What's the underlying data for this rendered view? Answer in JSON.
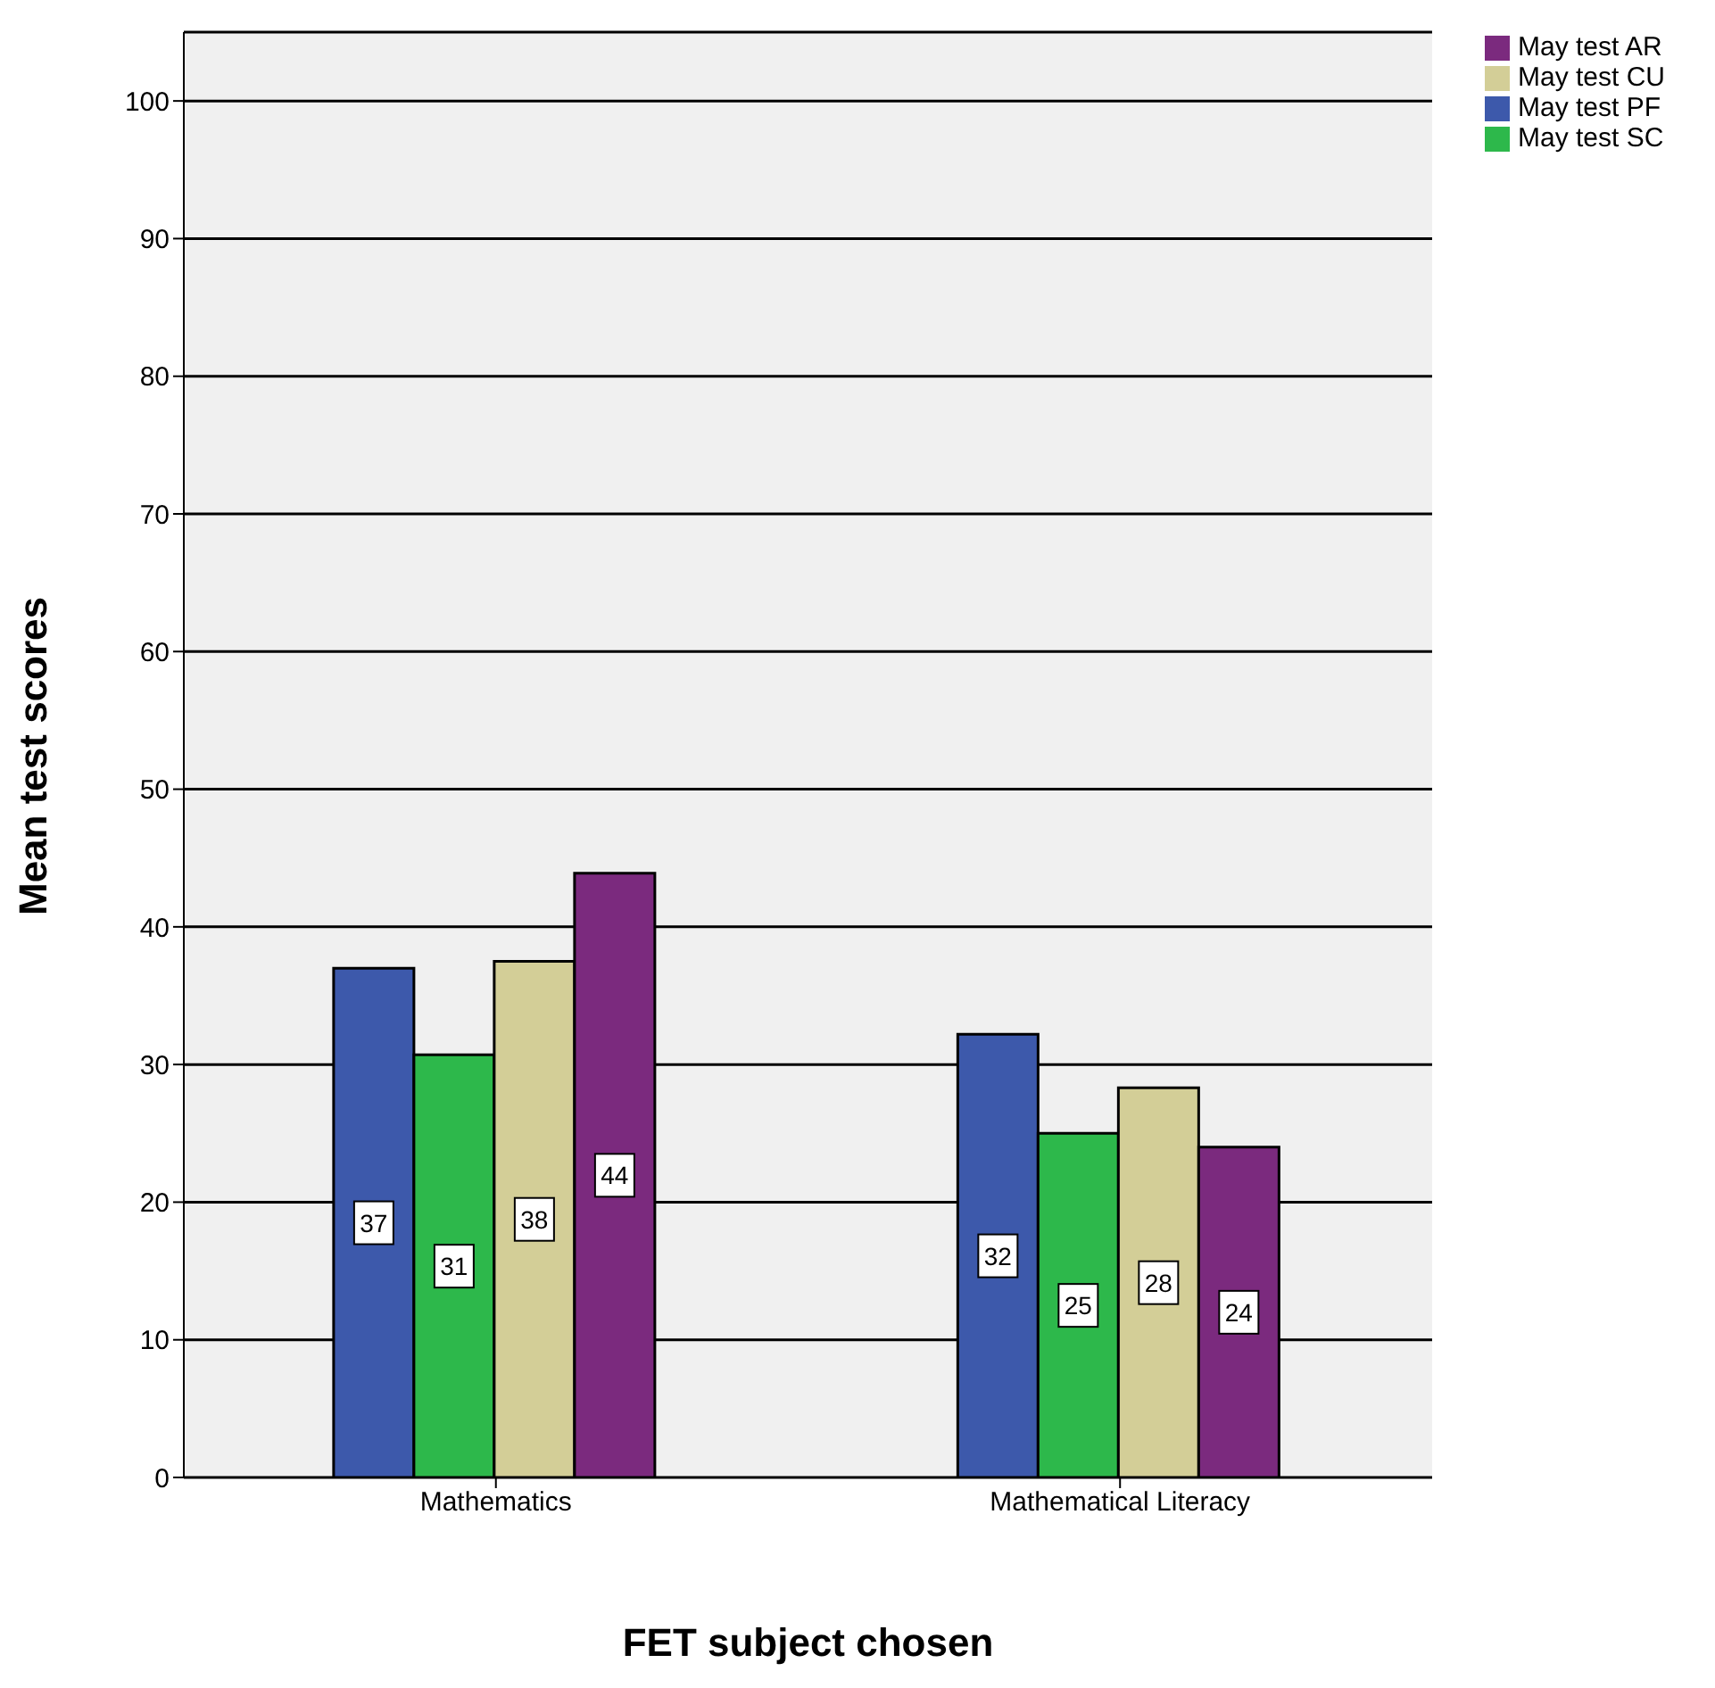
{
  "chart_data": {
    "type": "bar",
    "xlabel": "FET subject chosen",
    "ylabel": "Mean test scores",
    "categories": [
      "Mathematics",
      "Mathematical Literacy"
    ],
    "series": [
      {
        "name": "May test PF",
        "color": "#3d59ab",
        "values": [
          37.0,
          32.2
        ],
        "value_labels": [
          "37",
          "32"
        ]
      },
      {
        "name": "May test SC",
        "color": "#2db84b",
        "values": [
          30.7,
          25.0
        ],
        "value_labels": [
          "31",
          "25"
        ]
      },
      {
        "name": "May test CU",
        "color": "#d3ce97",
        "values": [
          37.5,
          28.3
        ],
        "value_labels": [
          "38",
          "28"
        ]
      },
      {
        "name": "May test AR",
        "color": "#7b2a7e",
        "values": [
          43.9,
          24.0
        ],
        "value_labels": [
          "44",
          "24"
        ]
      }
    ],
    "ylim": [
      0,
      105
    ],
    "yticks": [
      0,
      10,
      20,
      30,
      40,
      50,
      60,
      70,
      80,
      90,
      100
    ],
    "grid": "y",
    "legend": "top right"
  }
}
